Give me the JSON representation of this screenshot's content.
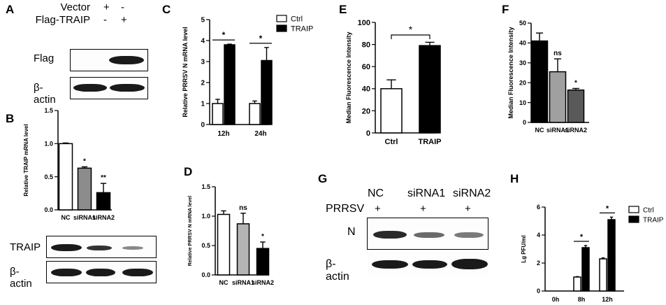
{
  "labels": {
    "A": "A",
    "B": "B",
    "C": "C",
    "D": "D",
    "E": "E",
    "F": "F",
    "G": "G",
    "H": "H"
  },
  "panel_A": {
    "rows": [
      {
        "label": "Vector",
        "marks": [
          "+",
          "-"
        ]
      },
      {
        "label": "Flag-TRAIP",
        "marks": [
          "-",
          "+"
        ]
      }
    ],
    "blots": [
      {
        "label": "Flag",
        "bands": [
          0,
          1.0
        ]
      },
      {
        "label": "β-actin",
        "bands": [
          1.0,
          1.0
        ]
      }
    ]
  },
  "panel_B_blots": [
    {
      "label": "TRAIP",
      "bands": [
        1.0,
        0.45,
        0.2
      ]
    },
    {
      "label": "β-actin",
      "bands": [
        1.0,
        0.9,
        1.0
      ]
    }
  ],
  "panel_G": {
    "columns": [
      "NC",
      "siRNA1",
      "siRNA2"
    ],
    "row_label": "PRRSV",
    "marks": [
      "+",
      "+",
      "+"
    ],
    "blots": [
      {
        "label": "N",
        "bands": [
          0.85,
          0.55,
          0.45
        ]
      },
      {
        "label": "β-actin",
        "bands": [
          1.0,
          1.0,
          1.1
        ]
      }
    ]
  },
  "chart_data": [
    {
      "id": "B",
      "type": "bar",
      "ylabel": "Relative TRAIP mRNA level",
      "categories": [
        "NC",
        "siRNA1",
        "siRNA2"
      ],
      "values": [
        1.0,
        0.63,
        0.26
      ],
      "errors": [
        0.01,
        0.02,
        0.14
      ],
      "colors": [
        "#ffffff",
        "#8c8c8c",
        "#000000"
      ],
      "sig": [
        "",
        "*",
        "**"
      ],
      "ylim": [
        0,
        1.5
      ],
      "yticks": [
        0.0,
        0.5,
        1.0,
        1.5
      ],
      "ytick_labels": [
        "0.0",
        "0.5",
        "1.0",
        "1.5"
      ]
    },
    {
      "id": "C",
      "type": "bar",
      "ylabel": "Relative PRRSV N mRNA level",
      "categories": [
        "12h",
        "24h"
      ],
      "series": [
        {
          "name": "Ctrl",
          "color": "#ffffff",
          "values": [
            1.0,
            1.0
          ],
          "errors": [
            0.2,
            0.12
          ]
        },
        {
          "name": "TRAIP",
          "color": "#000000",
          "values": [
            3.8,
            3.05
          ],
          "errors": [
            0.03,
            0.62
          ]
        }
      ],
      "sig": [
        "*",
        "*"
      ],
      "ylim": [
        0,
        5
      ],
      "yticks": [
        0,
        1,
        2,
        3,
        4,
        5
      ],
      "ytick_labels": [
        "0",
        "1",
        "2",
        "3",
        "4",
        "5"
      ],
      "legend": "top-right"
    },
    {
      "id": "D",
      "type": "bar",
      "ylabel": "Relative PRRSV N mRNA level",
      "categories": [
        "NC",
        "siRNA1",
        "siRNA2"
      ],
      "values": [
        1.03,
        0.87,
        0.45
      ],
      "errors": [
        0.06,
        0.18,
        0.11
      ],
      "colors": [
        "#ffffff",
        "#b4b4b4",
        "#000000"
      ],
      "sig": [
        "",
        "ns",
        "*"
      ],
      "ylim": [
        0,
        1.5
      ],
      "yticks": [
        0.0,
        0.5,
        1.0,
        1.5
      ],
      "ytick_labels": [
        "0.0",
        "0.5",
        "1.0",
        "1.5"
      ]
    },
    {
      "id": "E",
      "type": "bar",
      "ylabel": "Median Fluorescence Intensity",
      "categories": [
        "Ctrl",
        "TRAIP"
      ],
      "values": [
        40,
        79
      ],
      "errors": [
        8,
        3
      ],
      "colors": [
        "#ffffff",
        "#000000"
      ],
      "bracket": "*",
      "ylim": [
        0,
        100
      ],
      "yticks": [
        0,
        20,
        40,
        60,
        80,
        100
      ],
      "ytick_labels": [
        "0",
        "20",
        "40",
        "60",
        "80",
        "100"
      ]
    },
    {
      "id": "F",
      "type": "bar",
      "ylabel": "Median Fluorescence Intensity",
      "categories": [
        "NC",
        "siRNA1",
        "siRNA2"
      ],
      "values": [
        41,
        25.5,
        16.3
      ],
      "errors": [
        4,
        6.5,
        0.8
      ],
      "colors": [
        "#000000",
        "#a0a0a0",
        "#595959"
      ],
      "sig": [
        "",
        "ns",
        "*"
      ],
      "ylim": [
        0,
        50
      ],
      "yticks": [
        0,
        10,
        20,
        30,
        40,
        50
      ],
      "ytick_labels": [
        "0",
        "10",
        "20",
        "30",
        "40",
        "50"
      ]
    },
    {
      "id": "H",
      "type": "bar",
      "ylabel": "Lg PFU/ml",
      "categories": [
        "0h",
        "8h",
        "12h"
      ],
      "series": [
        {
          "name": "Ctrl",
          "color": "#ffffff",
          "values": [
            0,
            1.0,
            2.3
          ],
          "errors": [
            0,
            0.03,
            0.07
          ]
        },
        {
          "name": "TRAIP",
          "color": "#000000",
          "values": [
            0,
            3.1,
            5.1
          ],
          "errors": [
            0,
            0.15,
            0.18
          ]
        }
      ],
      "sig": [
        "",
        "*",
        "*"
      ],
      "ylim": [
        0,
        6
      ],
      "yticks": [
        0,
        2,
        4,
        6
      ],
      "ytick_labels": [
        "0",
        "2",
        "4",
        "6"
      ],
      "legend": "top-right"
    }
  ]
}
